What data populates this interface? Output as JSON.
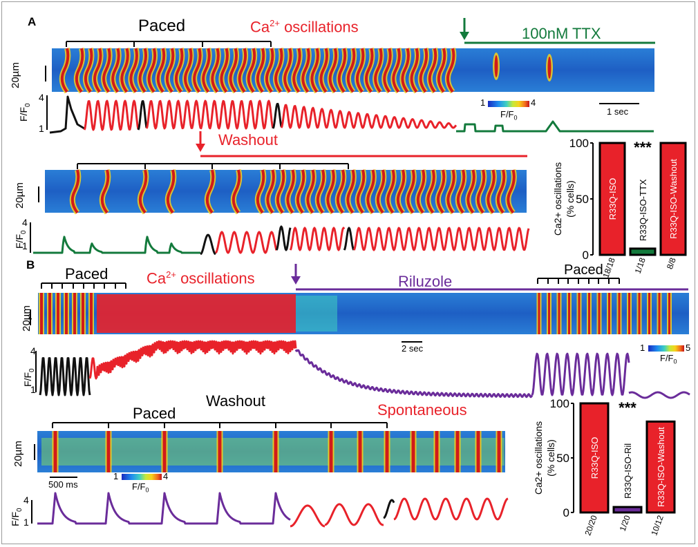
{
  "colors": {
    "red": "#e8222a",
    "green": "#137a3c",
    "purple": "#6a2c9a",
    "black": "#111111",
    "scan_bg": "#1f6cc8"
  },
  "panelA": {
    "letter": "A",
    "paced": "Paced",
    "ca_osc_prefix": "Ca",
    "ca_osc_sup": "2+",
    "ca_osc_suffix": " oscillations",
    "ttx": "100nM TTX",
    "scale_um": "20µm",
    "ff0_axis": "F/F",
    "ff0_sub": "0",
    "trace_max": "4",
    "trace_min": "1",
    "cbar_min": "1",
    "cbar_max": "4",
    "cbar_label": "F/F",
    "cbar_sub": "0",
    "time_scale": "1 sec",
    "washout": "Washout",
    "scale_um2": "20µm",
    "trace2_max": "4",
    "trace2_min": "1"
  },
  "panelB": {
    "letter": "B",
    "paced": "Paced",
    "ca_osc_prefix": "Ca",
    "ca_osc_sup": "2+",
    "ca_osc_suffix": " oscillations",
    "riluzole": "Riluzole",
    "paced_right": "Paced",
    "scale_um": "20µm",
    "time_scale": "2 sec",
    "cbar_min": "1",
    "cbar_max": "5",
    "cbar_label": "F/F",
    "cbar_sub": "0",
    "trace_max": "4",
    "trace_min": "1",
    "washout": "Washout",
    "paced2": "Paced",
    "spontaneous": "Spontaneous",
    "scale_um2": "20µm",
    "time_scale2": "500 ms",
    "cbar2_min": "1",
    "cbar2_max": "4",
    "cbar2_label": "F/F",
    "cbar2_sub": "0",
    "trace2_max": "4",
    "trace2_min": "1"
  },
  "chart_data": [
    {
      "type": "bar",
      "ylabel": "Ca2+ oscillations (% cells)",
      "ylim": [
        0,
        100
      ],
      "yticks": [
        "100",
        "50",
        "0"
      ],
      "categories": [
        "R33Q-ISO",
        "R33Q-ISO-TTX",
        "R33Q-ISO-Washout"
      ],
      "values": [
        100,
        5.6,
        100
      ],
      "counts": [
        "18/18",
        "1/18",
        "8/8"
      ],
      "bar_colors": [
        "#e8222a",
        "#137a3c",
        "#e8222a"
      ],
      "significance": "***"
    },
    {
      "type": "bar",
      "ylabel": "Ca2+ oscillations (% cells)",
      "ylim": [
        0,
        100
      ],
      "yticks": [
        "100",
        "50",
        "0"
      ],
      "categories": [
        "R33Q-ISO",
        "R33Q-ISO-Ril",
        "R33Q-ISO-Washout"
      ],
      "values": [
        100,
        5,
        83.3
      ],
      "counts": [
        "20/20",
        "1/20",
        "10/12"
      ],
      "bar_colors": [
        "#e8222a",
        "#6a2c9a",
        "#e8222a"
      ],
      "significance": "***"
    }
  ]
}
